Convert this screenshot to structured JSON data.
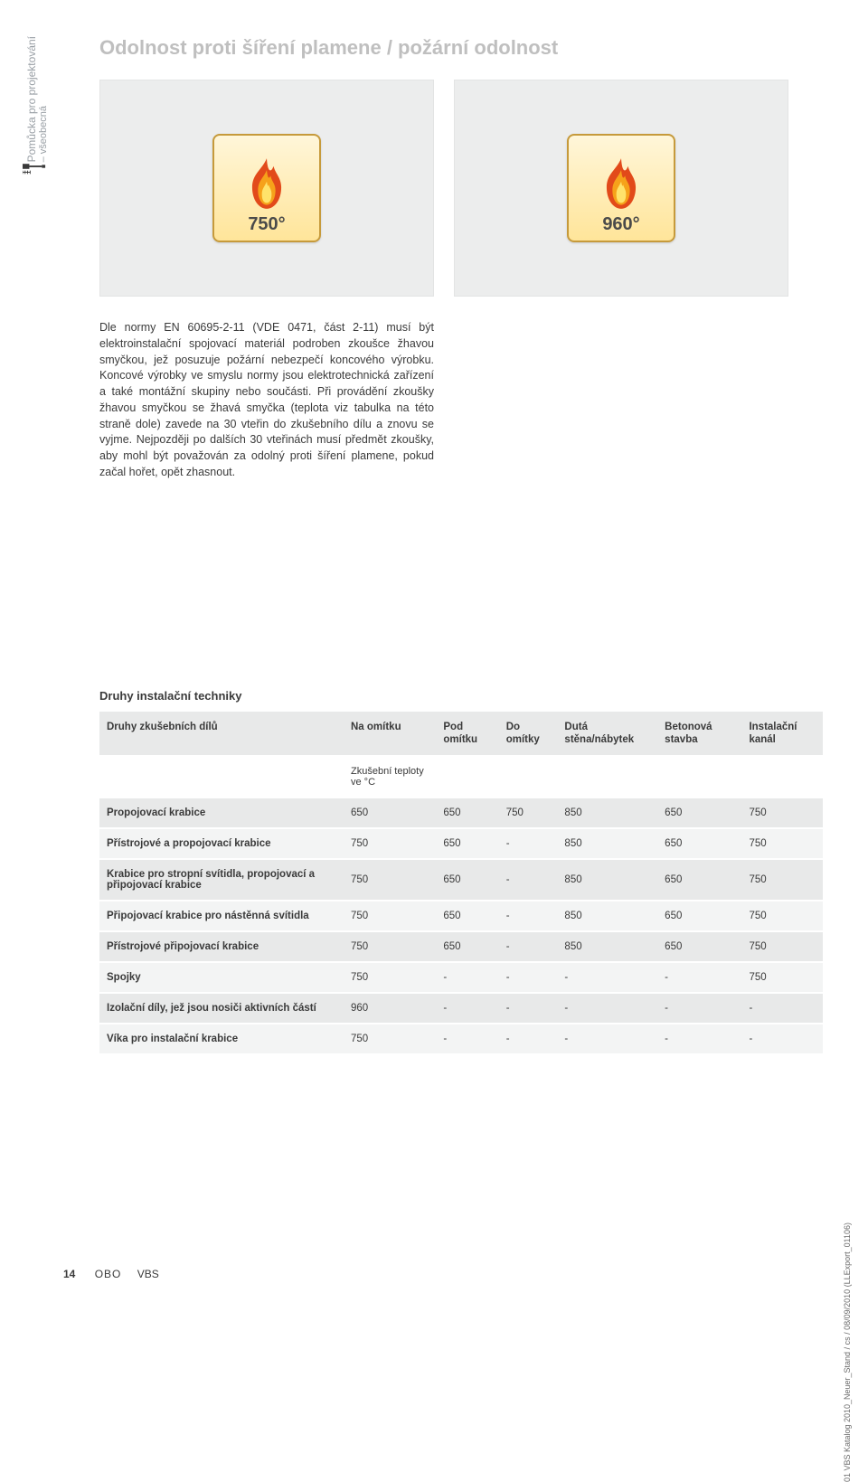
{
  "side": {
    "line1": "Pomůcka pro projektování",
    "line2": "– všeobecná"
  },
  "title": "Odolnost proti šíření plamene / požární odolnost",
  "figures": {
    "badge1_temp": "750°",
    "badge2_temp": "960°",
    "badge_bg_top": "#fff6d9",
    "badge_bg_bottom": "#ffe59a",
    "badge_border": "#c69a3b",
    "panel_bg": "#eceded"
  },
  "body": "Dle normy EN 60695-2-11 (VDE 0471, část 2-11) musí být elektroinstalační spojovací materiál podroben zkoušce žhavou smyčkou, jež posuzuje požární nebezpečí koncového výrobku. Koncové výrobky ve smyslu normy jsou elektrotechnická zařízení a také montážní skupiny nebo součásti. Při provádění zkoušky žhavou smyčkou se žhavá smyčka (teplota viz tabulka na této straně dole) zavede na 30 vteřin do zkušebního dílu a znovu se vyjme. Nejpozději po dalších 30 vteřinách musí předmět zkoušky, aby mohl být považován za odolný proti šíření plamene, pokud začal hořet, opět zhasnout.",
  "table": {
    "section_title": "Druhy instalační techniky",
    "columns": [
      "Druhy zkušebních dílů",
      "Na omítku",
      "Pod omítku",
      "Do omítky",
      "Dutá stěna/nábytek",
      "Betonová stavba",
      "Instalační kanál"
    ],
    "units_label": "Zkušební teploty ve °C",
    "rows": [
      {
        "label": "Propojovací krabice",
        "vals": [
          "650",
          "650",
          "750",
          "850",
          "650",
          "750"
        ]
      },
      {
        "label": "Přístrojové a propojovací krabice",
        "vals": [
          "750",
          "650",
          "-",
          "850",
          "650",
          "750"
        ]
      },
      {
        "label": "Krabice pro stropní svítidla, propojovací a připojovací krabice",
        "vals": [
          "750",
          "650",
          "-",
          "850",
          "650",
          "750"
        ]
      },
      {
        "label": "Připojovací krabice pro nástěnná svítidla",
        "vals": [
          "750",
          "650",
          "-",
          "850",
          "650",
          "750"
        ]
      },
      {
        "label": "Přístrojové připojovací krabice",
        "vals": [
          "750",
          "650",
          "-",
          "850",
          "650",
          "750"
        ]
      },
      {
        "label": "Spojky",
        "vals": [
          "750",
          "-",
          "-",
          "-",
          "-",
          "750"
        ]
      },
      {
        "label": "Izolační díly, jež jsou nosiči aktivních částí",
        "vals": [
          "960",
          "-",
          "-",
          "-",
          "-",
          "-"
        ]
      },
      {
        "label": "Víka pro instalační krabice",
        "vals": [
          "750",
          "-",
          "-",
          "-",
          "-",
          "-"
        ]
      }
    ]
  },
  "footer": {
    "page": "14",
    "brand1": "OBO",
    "brand2": "VBS"
  },
  "margin_note": "01 VBS Katalog 2010_Neuer_Stand / cs / 08/09/2010 (LLExport_01106)"
}
